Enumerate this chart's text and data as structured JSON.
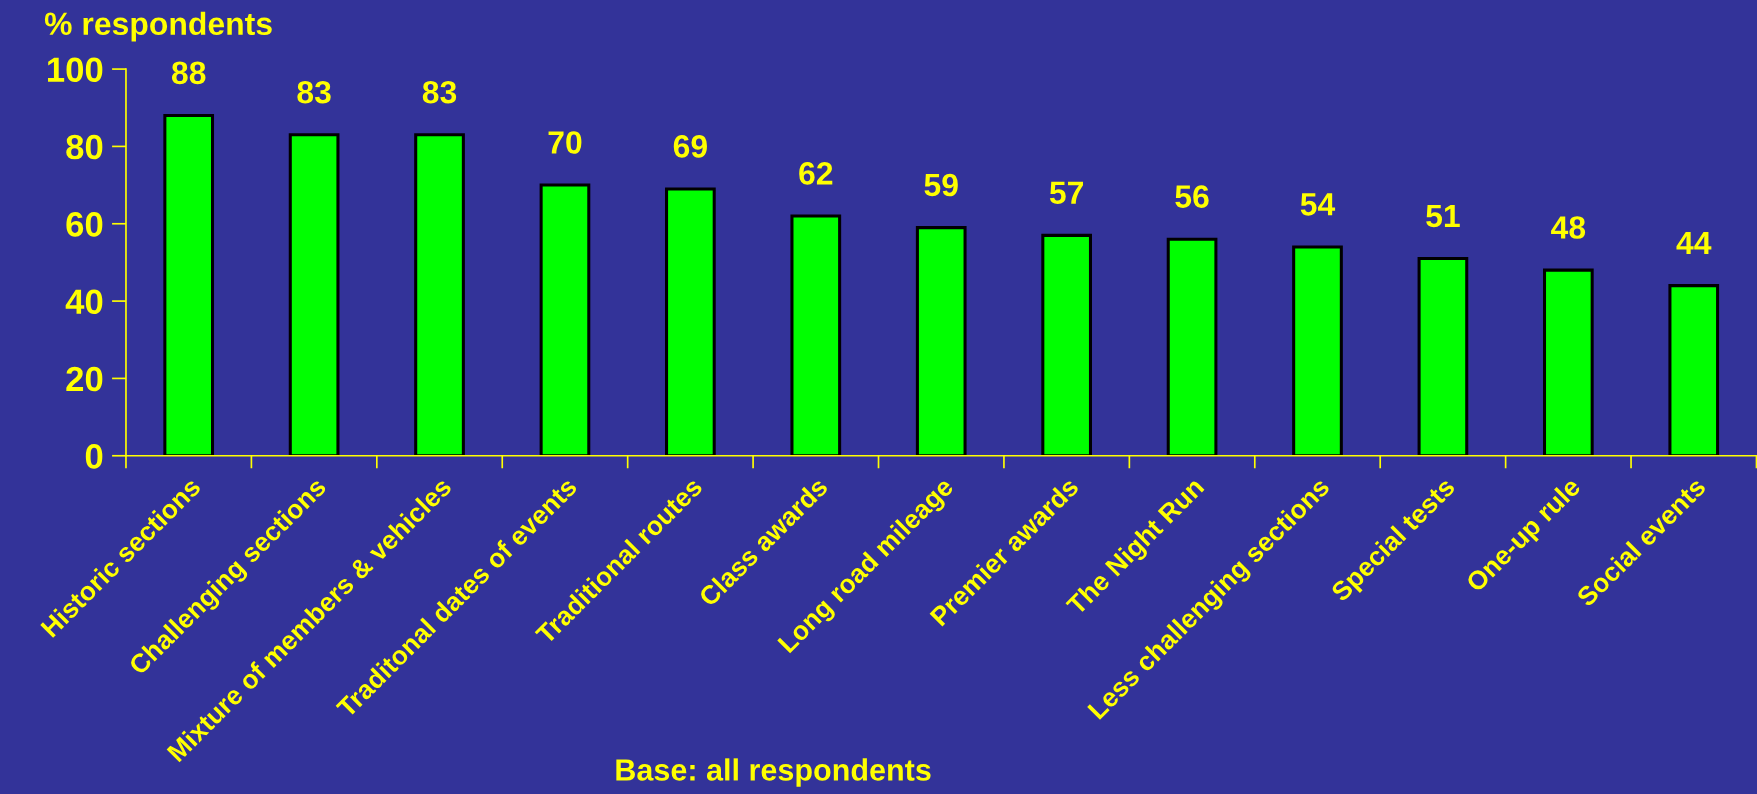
{
  "chart_data": {
    "type": "bar",
    "ylabel": "% respondents",
    "categories": [
      "Historic sections",
      "Challenging sections",
      "Mixture of members & vehicles",
      "Traditonal dates of events",
      "Traditional routes",
      "Class awards",
      "Long road mileage",
      "Premier awards",
      "The Night Run",
      "Less challenging sections",
      "Special tests",
      "One-up rule",
      "Social events"
    ],
    "values": [
      88,
      83,
      83,
      70,
      69,
      62,
      59,
      57,
      56,
      54,
      51,
      48,
      44
    ],
    "color": "#00ff00",
    "ylim": [
      0,
      100
    ],
    "yticks": [
      0,
      20,
      40,
      60,
      80,
      100
    ],
    "data_labels": true,
    "annotations": [
      "Base: all respondents"
    ]
  }
}
